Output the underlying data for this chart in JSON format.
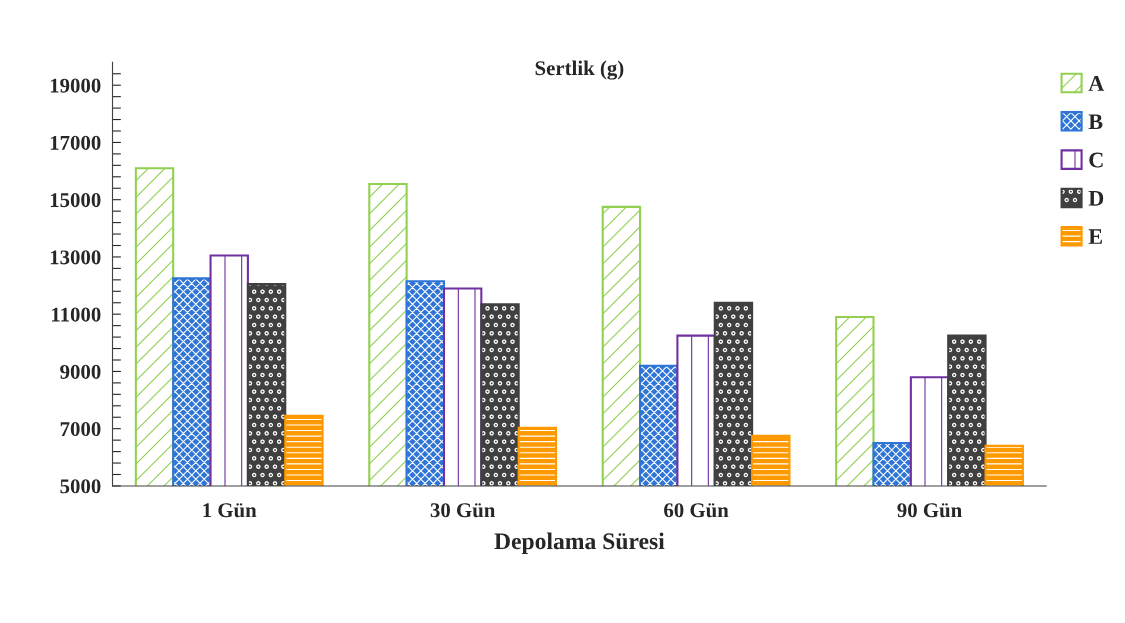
{
  "chart_data": {
    "type": "bar",
    "title": "Sertlik (g)",
    "xlabel": "Depolama Süresi",
    "categories": [
      "1 Gün",
      "30 Gün",
      "60 Gün",
      "90 Gün"
    ],
    "series": [
      {
        "name": "A",
        "color": "#92d050",
        "values": [
          16100,
          15550,
          14750,
          10900
        ]
      },
      {
        "name": "B",
        "color": "#2e75d6",
        "values": [
          12250,
          12150,
          9200,
          6500
        ]
      },
      {
        "name": "C",
        "color": "#7030a0",
        "values": [
          13050,
          11900,
          10250,
          8800
        ]
      },
      {
        "name": "D",
        "color": "#404040",
        "values": [
          12050,
          11350,
          11400,
          10250
        ]
      },
      {
        "name": "E",
        "color": "#ff9900",
        "values": [
          7450,
          7030,
          6750,
          6400
        ]
      }
    ],
    "ylim": [
      5000,
      19800
    ],
    "yticks": [
      5000,
      {
        "value": 5400,
        "label": null
      },
      {
        "value": 5800,
        "label": null
      },
      {
        "value": 6200,
        "label": null
      },
      {
        "value": 6600,
        "label": null
      },
      7000,
      {
        "value": 7400,
        "label": null
      },
      {
        "value": 7800,
        "label": null
      },
      {
        "value": 8200,
        "label": null
      },
      {
        "value": 8600,
        "label": null
      },
      9000,
      {
        "value": 9400,
        "label": null
      },
      {
        "value": 9800,
        "label": null
      },
      {
        "value": 10200,
        "label": null
      },
      {
        "value": 10600,
        "label": null
      },
      11000,
      {
        "value": 11400,
        "label": null
      },
      {
        "value": 11800,
        "label": null
      },
      {
        "value": 12200,
        "label": null
      },
      {
        "value": 12600,
        "label": null
      },
      13000,
      {
        "value": 13400,
        "label": null
      },
      {
        "value": 13800,
        "label": null
      },
      {
        "value": 14200,
        "label": null
      },
      {
        "value": 14600,
        "label": null
      },
      15000,
      {
        "value": 15400,
        "label": null
      },
      {
        "value": 15800,
        "label": null
      },
      {
        "value": 16200,
        "label": null
      },
      {
        "value": 16600,
        "label": null
      },
      17000,
      {
        "value": 17400,
        "label": null
      },
      {
        "value": 17800,
        "label": null
      },
      {
        "value": 18200,
        "label": null
      },
      {
        "value": 18600,
        "label": null
      },
      19000,
      {
        "value": 19400,
        "label": null
      }
    ],
    "grid": false,
    "legend": "top right"
  }
}
